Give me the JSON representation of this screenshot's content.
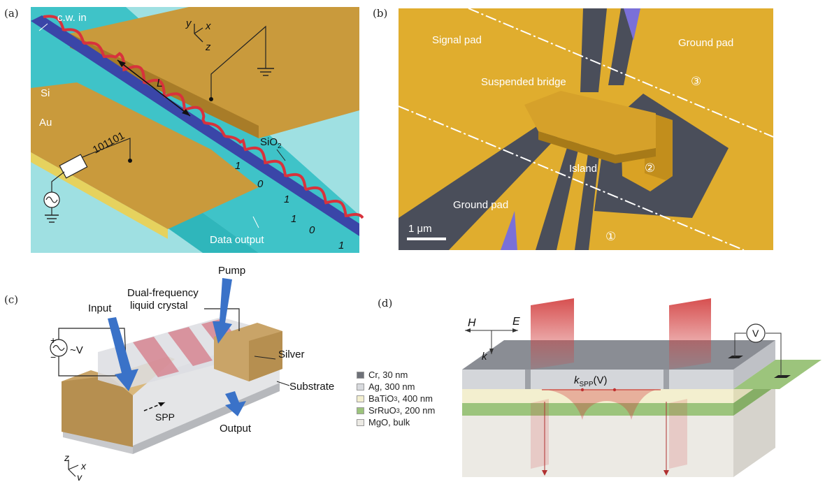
{
  "panel_a": {
    "letter": "(a)",
    "cw_in": "c.w. in",
    "axis_y": "y",
    "axis_x": "x",
    "axis_z": "z",
    "si": "Si",
    "au": "Au",
    "length": "L",
    "code": "101101",
    "sio2": "SiO",
    "sio2_sub": "2",
    "bits": [
      "1",
      "0",
      "1",
      "1",
      "0",
      "1"
    ],
    "data_output": "Data output",
    "colors": {
      "cyan": "#36c2c6",
      "gold": "#c99a3c",
      "wave": "#d8323c",
      "si": "#3a46a8"
    }
  },
  "panel_b": {
    "letter": "(b)",
    "signal_pad": "Signal pad",
    "ground_pad_top": "Ground pad",
    "suspended_bridge": "Suspended bridge",
    "island": "Island",
    "ground_pad_bottom": "Ground pad",
    "marker_1": "①",
    "marker_2": "②",
    "marker_3": "③",
    "scale_bar": "1 μm",
    "colors": {
      "gold": "#e0ad2e",
      "gap": "#4a4e5a",
      "blue": "#7a70d8"
    }
  },
  "panel_c": {
    "letter": "(c)",
    "pump": "Pump",
    "liquid_crystal_line1": "Dual-frequency",
    "liquid_crystal_line2": "liquid crystal",
    "input": "Input",
    "plus": "+",
    "minus": "−",
    "voltage": "~V",
    "silver": "Silver",
    "substrate": "Substrate",
    "spp": "SPP",
    "output": "Output",
    "axis_z": "z",
    "axis_x": "x",
    "axis_y": "y",
    "colors": {
      "gold": "#c9a468",
      "arrow": "#3a72c8",
      "stripe": "#d6808c"
    }
  },
  "panel_d": {
    "letter": "(d)",
    "field_h": "H",
    "field_e": "E",
    "k": "k",
    "k_spp_main": "k",
    "k_spp_sub": "SPP",
    "k_spp_arg": "(V)",
    "voltmeter": "V",
    "legend": [
      {
        "label": "Cr, 30 nm",
        "color": "#6e7178"
      },
      {
        "label": "Ag, 300 nm",
        "color": "#d8dade"
      },
      {
        "label": "BaTiO",
        "sub": "3",
        "tail": ", 400 nm",
        "color": "#f3efcf"
      },
      {
        "label": "SrRuO",
        "sub": "3",
        "tail": ", 200 nm",
        "color": "#9cc47c"
      },
      {
        "label": "MgO, bulk",
        "color": "#eceae4"
      }
    ],
    "colors": {
      "field": "#d23c3c",
      "green": "#9cc47c",
      "yellow": "#f3efcf",
      "silver": "#d4d6da"
    }
  }
}
